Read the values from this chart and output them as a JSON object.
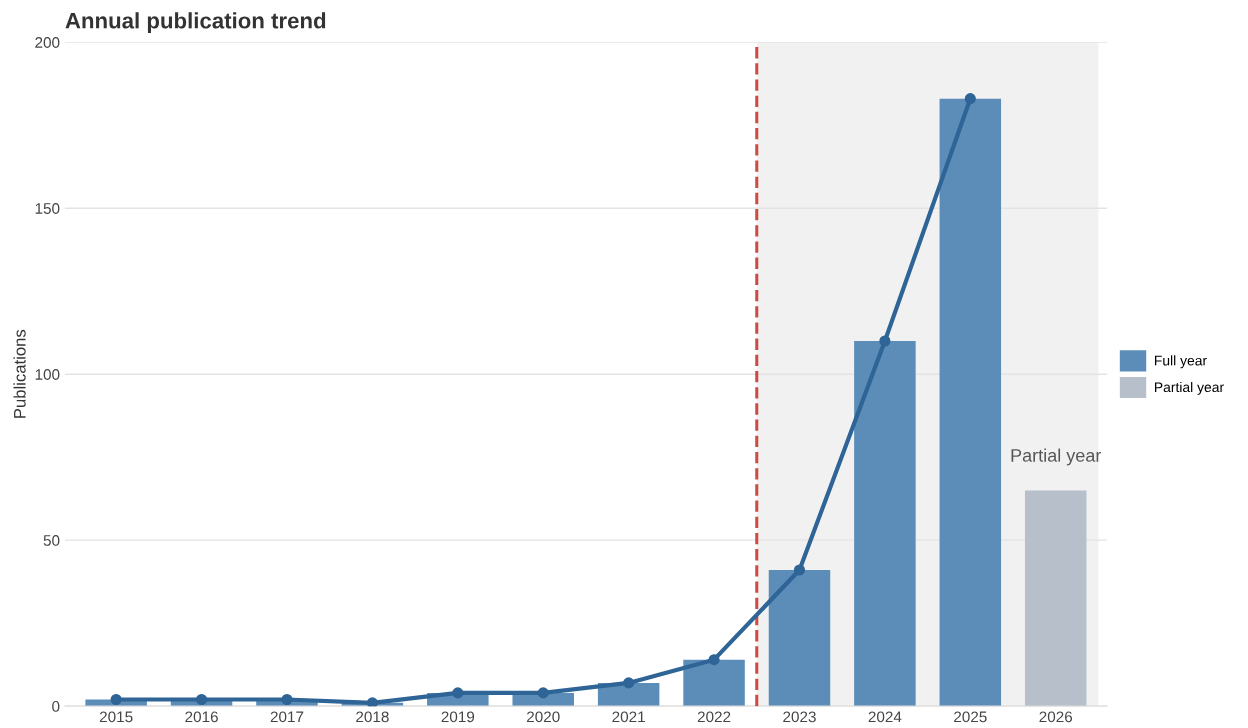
{
  "chart_data": {
    "type": "bar",
    "title": "Annual publication trend",
    "ylabel": "Publications",
    "x": [
      2015,
      2016,
      2017,
      2018,
      2019,
      2020,
      2021,
      2022,
      2023,
      2024,
      2025,
      2026
    ],
    "series": [
      {
        "name": "Full year",
        "color": "#5b8db8",
        "values": [
          2,
          2,
          2,
          1,
          4,
          4,
          7,
          14,
          41,
          110,
          183,
          null
        ]
      },
      {
        "name": "Partial year",
        "color": "#b7bfcb",
        "values": [
          null,
          null,
          null,
          null,
          null,
          null,
          null,
          null,
          null,
          null,
          null,
          65
        ]
      },
      {
        "type": "line",
        "color": "#2e6496",
        "x": [
          2015,
          2016,
          2017,
          2018,
          2019,
          2020,
          2021,
          2022,
          2023,
          2024,
          2025
        ],
        "values": [
          2,
          2,
          2,
          1,
          4,
          4,
          7,
          14,
          41,
          110,
          183
        ]
      }
    ],
    "xlim": [
      2014.4,
      2026.6
    ],
    "xticks": [
      2015,
      2016,
      2017,
      2018,
      2019,
      2020,
      2021,
      2022,
      2023,
      2024,
      2025,
      2026
    ],
    "ylim": [
      0,
      200
    ],
    "yticks": [
      0,
      50,
      100,
      150,
      200
    ],
    "ref_lines": [
      {
        "axis": "x",
        "value": 2022.5,
        "color": "#cc4c45",
        "line_style": "dashed"
      }
    ],
    "bands": [
      {
        "axis": "x",
        "from": 2022.5,
        "to": 2026.5,
        "color": "#f1f1f1"
      }
    ],
    "annotations": [
      {
        "text": "Partial year",
        "x": 2026,
        "y": 65
      }
    ],
    "grid": "y",
    "legend": "right",
    "marker": "circle"
  }
}
